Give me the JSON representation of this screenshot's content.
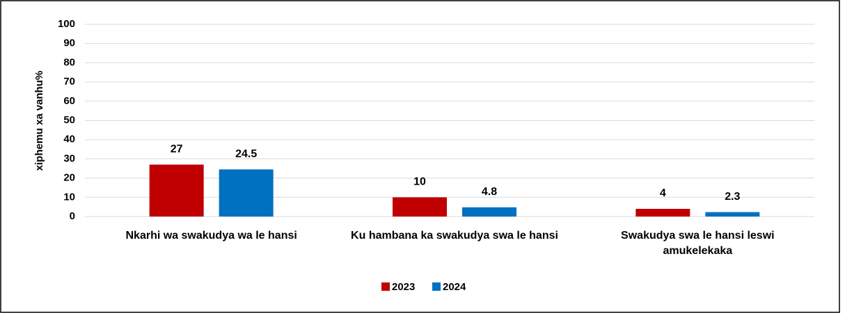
{
  "chart_data": {
    "type": "bar",
    "y_label": "xiphemu  xa vanhu%",
    "categories": [
      "Nkarhi wa swakudya wa le hansi",
      "Ku hambana ka swakudya swa le hansi",
      "Swakudya swa le hansi leswi amukelekaka"
    ],
    "series": [
      {
        "name": "2023",
        "color": "#c00000",
        "values": [
          27,
          10,
          4
        ]
      },
      {
        "name": "2024",
        "color": "#0070c0",
        "values": [
          24.5,
          4.8,
          2.3
        ]
      }
    ],
    "ylim": [
      0,
      100
    ],
    "yticks": [
      0,
      10,
      20,
      30,
      40,
      50,
      60,
      70,
      80,
      90,
      100
    ],
    "grid": true,
    "legend": "bottom"
  }
}
